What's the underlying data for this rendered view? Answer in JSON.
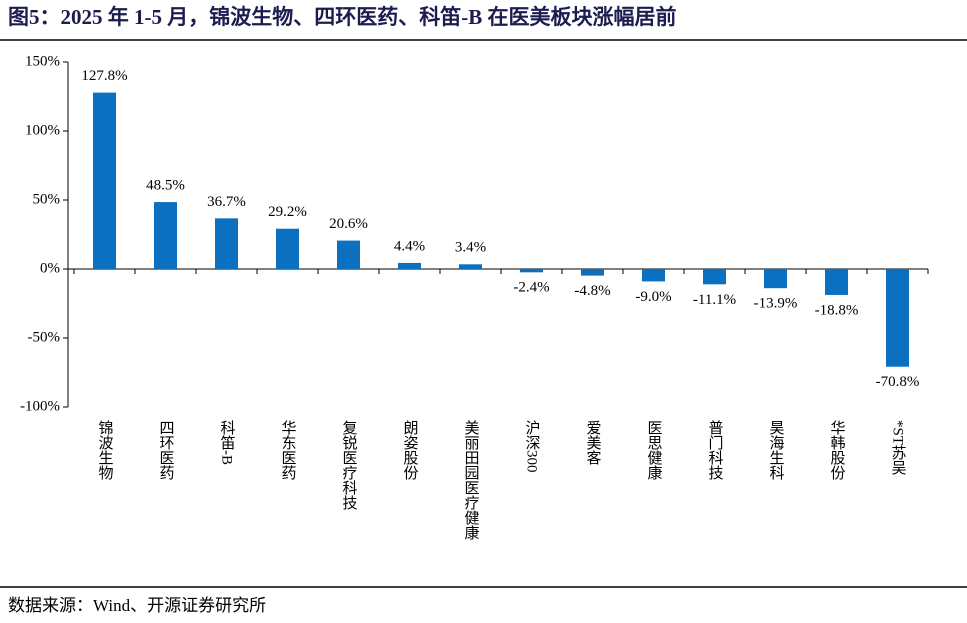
{
  "chart_data": {
    "type": "bar",
    "title": "图5：2025 年 1-5 月，锦波生物、四环医药、科笛-B 在医美板块涨幅居前",
    "source": "数据来源：Wind、开源证券研究所",
    "categories": [
      "锦波生物",
      "四环医药",
      "科笛-B",
      "华东医药",
      "复锐医疗科技",
      "朗姿股份",
      "美丽田园医疗健康",
      "沪深300",
      "爱美客",
      "医思健康",
      "普门科技",
      "昊海生科",
      "华韩股份",
      "*ST苏吴"
    ],
    "values": [
      127.8,
      48.5,
      36.7,
      29.2,
      20.6,
      4.4,
      3.4,
      -2.4,
      -4.8,
      -9.0,
      -11.1,
      -13.9,
      -18.8,
      -70.8
    ],
    "value_labels": [
      "127.8%",
      "48.5%",
      "36.7%",
      "29.2%",
      "20.6%",
      "4.4%",
      "3.4%",
      "-2.4%",
      "-4.8%",
      "-9.0%",
      "-11.1%",
      "-13.9%",
      "-18.8%",
      "-70.8%"
    ],
    "color": "#0b70c0",
    "ylim": [
      -100,
      150
    ],
    "yticks": [
      {
        "value": -100,
        "label": "-100%"
      },
      {
        "value": -50,
        "label": "-50%"
      },
      {
        "value": 0,
        "label": "0%"
      },
      {
        "value": 50,
        "label": "50%"
      },
      {
        "value": 100,
        "label": "100%"
      },
      {
        "value": 150,
        "label": "150%"
      }
    ],
    "grid": false
  }
}
